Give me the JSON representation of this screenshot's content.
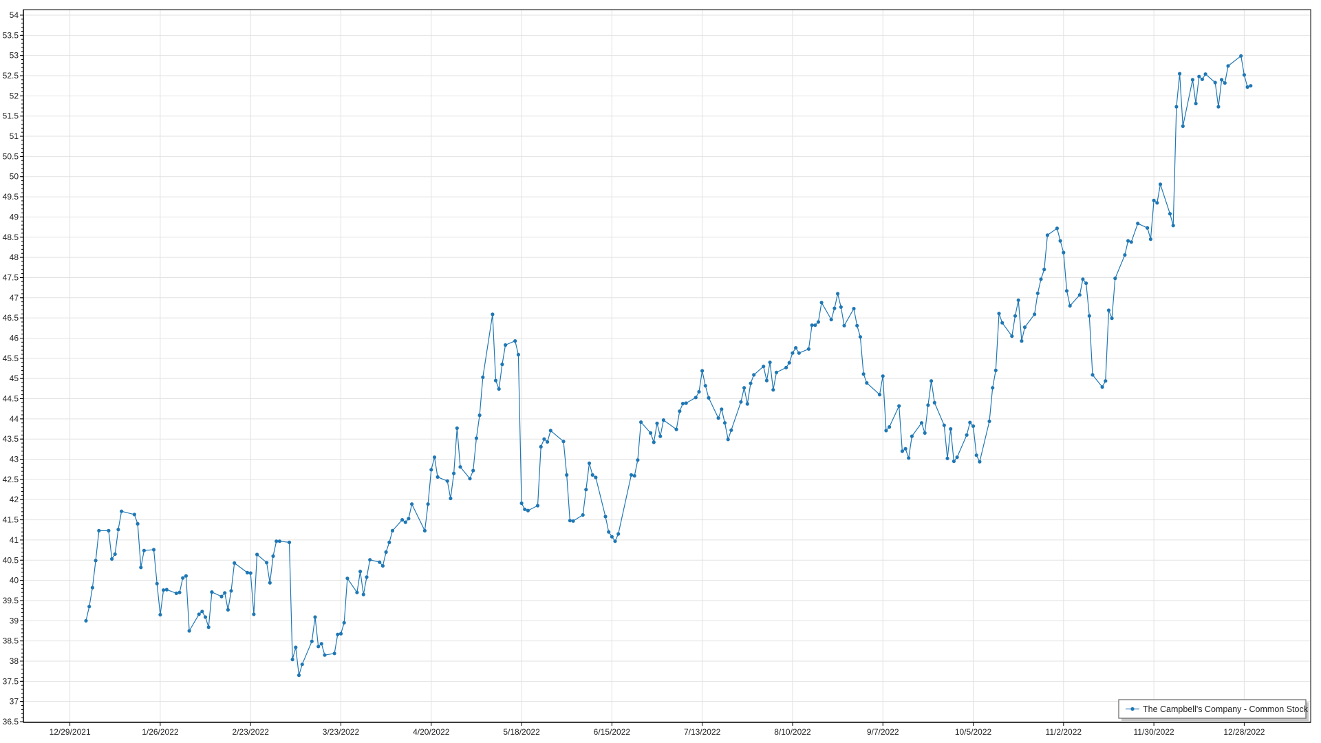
{
  "chart_data": {
    "type": "line",
    "title": "",
    "xlabel": "",
    "ylabel": "",
    "ylim": [
      36.5,
      54
    ],
    "xlim": [
      "12/29/2021",
      "1/18/2023"
    ],
    "y_ticks": [
      "36.5",
      "37",
      "37.5",
      "38",
      "38.5",
      "39",
      "39.5",
      "40",
      "40.5",
      "41",
      "41.5",
      "42",
      "42.5",
      "43",
      "43.5",
      "44",
      "44.5",
      "45",
      "45.5",
      "46",
      "46.5",
      "47",
      "47.5",
      "48",
      "48.5",
      "49",
      "49.5",
      "50",
      "50.5",
      "51",
      "51.5",
      "52",
      "52.5",
      "53",
      "53.5",
      "54"
    ],
    "x_ticks": [
      "12/29/2021",
      "1/26/2022",
      "2/23/2022",
      "3/23/2022",
      "4/20/2022",
      "5/18/2022",
      "6/15/2022",
      "7/13/2022",
      "8/10/2022",
      "9/7/2022",
      "10/5/2022",
      "11/2/2022",
      "11/30/2022",
      "12/28/2022"
    ],
    "grid": true,
    "legend_position": "bottom-right",
    "line_color": "#1f77b4",
    "series": [
      {
        "name": "The Campbell's Company - Common Stock",
        "x": [
          "1/3/2022",
          "1/4/2022",
          "1/5/2022",
          "1/6/2022",
          "1/7/2022",
          "1/10/2022",
          "1/11/2022",
          "1/12/2022",
          "1/13/2022",
          "1/14/2022",
          "1/18/2022",
          "1/19/2022",
          "1/20/2022",
          "1/21/2022",
          "1/24/2022",
          "1/25/2022",
          "1/26/2022",
          "1/27/2022",
          "1/28/2022",
          "1/31/2022",
          "2/1/2022",
          "2/2/2022",
          "2/3/2022",
          "2/4/2022",
          "2/7/2022",
          "2/8/2022",
          "2/9/2022",
          "2/10/2022",
          "2/11/2022",
          "2/14/2022",
          "2/15/2022",
          "2/16/2022",
          "2/17/2022",
          "2/18/2022",
          "2/22/2022",
          "2/23/2022",
          "2/24/2022",
          "2/25/2022",
          "2/28/2022",
          "3/1/2022",
          "3/2/2022",
          "3/3/2022",
          "3/4/2022",
          "3/7/2022",
          "3/8/2022",
          "3/9/2022",
          "3/10/2022",
          "3/11/2022",
          "3/14/2022",
          "3/15/2022",
          "3/16/2022",
          "3/17/2022",
          "3/18/2022",
          "3/21/2022",
          "3/22/2022",
          "3/23/2022",
          "3/24/2022",
          "3/25/2022",
          "3/28/2022",
          "3/29/2022",
          "3/30/2022",
          "3/31/2022",
          "4/1/2022",
          "4/4/2022",
          "4/5/2022",
          "4/6/2022",
          "4/7/2022",
          "4/8/2022",
          "4/11/2022",
          "4/12/2022",
          "4/13/2022",
          "4/14/2022",
          "4/18/2022",
          "4/19/2022",
          "4/20/2022",
          "4/21/2022",
          "4/22/2022",
          "4/25/2022",
          "4/26/2022",
          "4/27/2022",
          "4/28/2022",
          "4/29/2022",
          "5/2/2022",
          "5/3/2022",
          "5/4/2022",
          "5/5/2022",
          "5/6/2022",
          "5/9/2022",
          "5/10/2022",
          "5/11/2022",
          "5/12/2022",
          "5/13/2022",
          "5/16/2022",
          "5/17/2022",
          "5/18/2022",
          "5/19/2022",
          "5/20/2022",
          "5/23/2022",
          "5/24/2022",
          "5/25/2022",
          "5/26/2022",
          "5/27/2022",
          "5/31/2022",
          "6/1/2022",
          "6/2/2022",
          "6/3/2022",
          "6/6/2022",
          "6/7/2022",
          "6/8/2022",
          "6/9/2022",
          "6/10/2022",
          "6/13/2022",
          "6/14/2022",
          "6/15/2022",
          "6/16/2022",
          "6/17/2022",
          "6/21/2022",
          "6/22/2022",
          "6/23/2022",
          "6/24/2022",
          "6/27/2022",
          "6/28/2022",
          "6/29/2022",
          "6/30/2022",
          "7/1/2022",
          "7/5/2022",
          "7/6/2022",
          "7/7/2022",
          "7/8/2022",
          "7/11/2022",
          "7/12/2022",
          "7/13/2022",
          "7/14/2022",
          "7/15/2022",
          "7/18/2022",
          "7/19/2022",
          "7/20/2022",
          "7/21/2022",
          "7/22/2022",
          "7/25/2022",
          "7/26/2022",
          "7/27/2022",
          "7/28/2022",
          "7/29/2022",
          "8/1/2022",
          "8/2/2022",
          "8/3/2022",
          "8/4/2022",
          "8/5/2022",
          "8/8/2022",
          "8/9/2022",
          "8/10/2022",
          "8/11/2022",
          "8/12/2022",
          "8/15/2022",
          "8/16/2022",
          "8/17/2022",
          "8/18/2022",
          "8/19/2022",
          "8/22/2022",
          "8/23/2022",
          "8/24/2022",
          "8/25/2022",
          "8/26/2022",
          "8/29/2022",
          "8/30/2022",
          "8/31/2022",
          "9/1/2022",
          "9/2/2022",
          "9/6/2022",
          "9/7/2022",
          "9/8/2022",
          "9/9/2022",
          "9/12/2022",
          "9/13/2022",
          "9/14/2022",
          "9/15/2022",
          "9/16/2022",
          "9/19/2022",
          "9/20/2022",
          "9/21/2022",
          "9/22/2022",
          "9/23/2022",
          "9/26/2022",
          "9/27/2022",
          "9/28/2022",
          "9/29/2022",
          "9/30/2022",
          "10/3/2022",
          "10/4/2022",
          "10/5/2022",
          "10/6/2022",
          "10/7/2022",
          "10/10/2022",
          "10/11/2022",
          "10/12/2022",
          "10/13/2022",
          "10/14/2022",
          "10/17/2022",
          "10/18/2022",
          "10/19/2022",
          "10/20/2022",
          "10/21/2022",
          "10/24/2022",
          "10/25/2022",
          "10/26/2022",
          "10/27/2022",
          "10/28/2022",
          "10/31/2022",
          "11/1/2022",
          "11/2/2022",
          "11/3/2022",
          "11/4/2022",
          "11/7/2022",
          "11/8/2022",
          "11/9/2022",
          "11/10/2022",
          "11/11/2022",
          "11/14/2022",
          "11/15/2022",
          "11/16/2022",
          "11/17/2022",
          "11/18/2022",
          "11/21/2022",
          "11/22/2022",
          "11/23/2022",
          "11/25/2022",
          "11/28/2022",
          "11/29/2022",
          "11/30/2022",
          "12/1/2022",
          "12/2/2022",
          "12/5/2022",
          "12/6/2022",
          "12/7/2022",
          "12/8/2022",
          "12/9/2022",
          "12/12/2022",
          "12/13/2022",
          "12/14/2022",
          "12/15/2022",
          "12/16/2022",
          "12/19/2022",
          "12/20/2022",
          "12/21/2022",
          "12/22/2022",
          "12/23/2022",
          "12/27/2022",
          "12/28/2022",
          "12/29/2022",
          "12/30/2022"
        ],
        "y": [
          39.0,
          39.35,
          39.82,
          40.49,
          41.23,
          41.23,
          40.53,
          40.65,
          41.26,
          41.71,
          41.63,
          41.4,
          40.32,
          40.74,
          40.76,
          39.92,
          39.15,
          39.76,
          39.77,
          39.68,
          39.7,
          40.06,
          40.11,
          38.75,
          39.16,
          39.23,
          39.09,
          38.84,
          39.71,
          39.6,
          39.69,
          39.27,
          39.74,
          40.43,
          40.19,
          40.18,
          39.16,
          40.64,
          40.44,
          39.94,
          40.6,
          40.97,
          40.97,
          40.94,
          38.04,
          38.34,
          37.65,
          37.92,
          38.49,
          39.09,
          38.36,
          38.43,
          38.15,
          38.19,
          38.66,
          38.68,
          38.95,
          40.05,
          39.7,
          40.22,
          39.65,
          40.08,
          40.51,
          40.45,
          40.36,
          40.7,
          40.94,
          41.23,
          41.5,
          41.44,
          41.53,
          41.89,
          41.23,
          41.89,
          42.74,
          43.05,
          42.56,
          42.46,
          42.03,
          42.65,
          43.77,
          42.81,
          42.52,
          42.72,
          43.52,
          44.09,
          45.03,
          46.59,
          44.95,
          44.74,
          45.35,
          45.83,
          45.93,
          45.59,
          41.91,
          41.76,
          41.73,
          41.85,
          43.31,
          43.5,
          43.43,
          43.71,
          43.44,
          42.61,
          41.48,
          41.47,
          41.62,
          42.25,
          42.9,
          42.61,
          42.55,
          41.58,
          41.2,
          41.08,
          40.97,
          41.15,
          42.61,
          42.59,
          42.98,
          43.92,
          43.65,
          43.42,
          43.89,
          43.57,
          43.97,
          43.74,
          44.19,
          44.38,
          44.39,
          44.53,
          44.67,
          45.19,
          44.82,
          44.52,
          44.02,
          44.24,
          43.9,
          43.49,
          43.72,
          44.42,
          44.77,
          44.37,
          44.88,
          45.09,
          45.3,
          44.95,
          45.4,
          44.72,
          45.15,
          45.27,
          45.39,
          45.63,
          45.76,
          45.63,
          45.73,
          46.32,
          46.32,
          46.4,
          46.88,
          46.46,
          46.74,
          47.1,
          46.77,
          46.31,
          46.73,
          46.31,
          46.03,
          45.11,
          44.89,
          44.6,
          45.06,
          43.71,
          43.8,
          44.32,
          43.2,
          43.26,
          43.03,
          43.57,
          43.9,
          43.65,
          44.34,
          44.94,
          44.4,
          43.84,
          43.02,
          43.75,
          42.95,
          43.05,
          43.6,
          43.91,
          43.82,
          43.1,
          42.94,
          43.94,
          44.77,
          45.2,
          46.61,
          46.38,
          46.05,
          46.55,
          46.94,
          45.93,
          46.27,
          46.59,
          47.11,
          47.46,
          47.7,
          48.55,
          48.72,
          48.41,
          48.12,
          47.17,
          46.8,
          47.07,
          47.46,
          47.36,
          46.55,
          45.09,
          44.79,
          44.94,
          46.69,
          46.49,
          47.48,
          48.06,
          48.41,
          48.38,
          48.84,
          48.73,
          48.45,
          49.41,
          49.35,
          49.81,
          49.08,
          48.79,
          51.73,
          52.55,
          51.25,
          52.4,
          51.81,
          52.48,
          52.41,
          52.54,
          52.33,
          51.73,
          52.4,
          52.32,
          52.74,
          52.99,
          52.52,
          52.22,
          52.25
        ]
      }
    ]
  }
}
